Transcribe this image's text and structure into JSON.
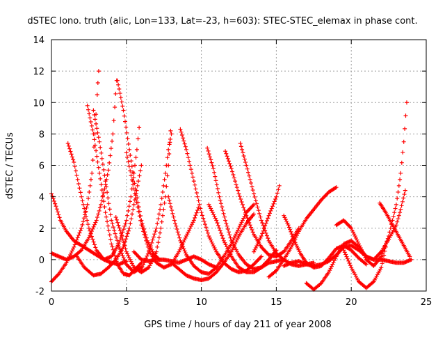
{
  "chart_data": {
    "type": "scatter",
    "title": "dSTEC Iono. truth (alic, Lon=133, Lat=-23, h=603): STEC-STEC_elemax in phase cont.",
    "xlabel": "GPS time / hours of day 211 of year 2008",
    "ylabel": "dSTEC  / TECUs",
    "xlim": [
      0,
      25
    ],
    "ylim": [
      -2,
      14
    ],
    "xticks": [
      "0",
      "5",
      "10",
      "15",
      "20",
      "25"
    ],
    "yticks": [
      "-2",
      "0",
      "2",
      "4",
      "6",
      "8",
      "10",
      "12",
      "14"
    ],
    "grid": true,
    "legend": "none",
    "marker": "plus",
    "series_color": "#ff0000",
    "series": [
      {
        "points": [
          [
            0.0,
            0.4
          ],
          [
            0.5,
            0.2
          ],
          [
            1.0,
            0.0
          ],
          [
            1.5,
            0.2
          ],
          [
            2.0,
            0.6
          ],
          [
            2.5,
            1.4
          ],
          [
            3.0,
            2.5
          ],
          [
            3.3,
            3.5
          ],
          [
            3.55,
            4.5
          ],
          [
            3.8,
            5.7
          ],
          [
            4.1,
            8.0
          ],
          [
            4.35,
            11.4
          ]
        ]
      },
      {
        "points": [
          [
            0.0,
            -1.4
          ],
          [
            0.5,
            -0.9
          ],
          [
            1.0,
            -0.2
          ],
          [
            1.5,
            0.8
          ],
          [
            2.0,
            2.0
          ],
          [
            2.4,
            3.5
          ],
          [
            2.7,
            5.5
          ],
          [
            2.9,
            8.0
          ],
          [
            3.05,
            10.5
          ],
          [
            3.15,
            12.0
          ]
        ]
      },
      {
        "points": [
          [
            0.0,
            4.2
          ],
          [
            0.3,
            3.4
          ],
          [
            0.6,
            2.5
          ],
          [
            1.0,
            1.8
          ],
          [
            1.5,
            1.2
          ],
          [
            2.0,
            0.9
          ],
          [
            2.5,
            0.6
          ],
          [
            3.0,
            0.3
          ],
          [
            3.5,
            0.0
          ],
          [
            4.0,
            -0.2
          ],
          [
            4.5,
            -0.3
          ],
          [
            5.0,
            -0.1
          ]
        ]
      },
      {
        "points": [
          [
            1.1,
            7.4
          ],
          [
            1.5,
            6.2
          ],
          [
            2.0,
            4.0
          ],
          [
            2.5,
            2.0
          ],
          [
            3.0,
            0.6
          ],
          [
            3.5,
            0.0
          ],
          [
            4.0,
            0.2
          ],
          [
            4.5,
            1.0
          ],
          [
            5.0,
            2.5
          ],
          [
            5.3,
            4.0
          ],
          [
            5.5,
            5.5
          ],
          [
            5.7,
            7.0
          ],
          [
            5.85,
            8.4
          ]
        ]
      },
      {
        "points": [
          [
            2.4,
            9.8
          ],
          [
            2.8,
            8.0
          ],
          [
            3.2,
            5.5
          ],
          [
            3.6,
            3.0
          ],
          [
            4.0,
            1.0
          ],
          [
            4.4,
            -0.3
          ],
          [
            4.8,
            -0.9
          ],
          [
            5.2,
            -1.0
          ],
          [
            5.6,
            -0.6
          ],
          [
            6.0,
            -0.2
          ]
        ]
      },
      {
        "points": [
          [
            2.8,
            9.5
          ],
          [
            3.2,
            7.5
          ],
          [
            3.6,
            5.0
          ],
          [
            4.0,
            2.5
          ],
          [
            4.5,
            0.8
          ],
          [
            5.0,
            -0.3
          ],
          [
            5.5,
            -0.8
          ],
          [
            6.0,
            -0.5
          ]
        ]
      },
      {
        "points": [
          [
            1.7,
            0.2
          ],
          [
            2.2,
            -0.5
          ],
          [
            2.8,
            -1.0
          ],
          [
            3.3,
            -0.9
          ],
          [
            3.8,
            -0.5
          ],
          [
            4.3,
            0.0
          ],
          [
            4.8,
            0.8
          ],
          [
            5.2,
            2.0
          ],
          [
            5.5,
            3.5
          ],
          [
            5.8,
            5.0
          ],
          [
            6.0,
            6.0
          ]
        ]
      },
      {
        "points": [
          [
            4.3,
            2.7
          ],
          [
            4.7,
            1.5
          ],
          [
            5.0,
            0.5
          ],
          [
            5.5,
            -0.5
          ],
          [
            6.0,
            -0.8
          ],
          [
            6.5,
            -0.5
          ],
          [
            7.0,
            0.5
          ],
          [
            7.3,
            2.0
          ],
          [
            7.6,
            4.0
          ],
          [
            7.8,
            6.0
          ],
          [
            7.95,
            8.2
          ]
        ]
      },
      {
        "points": [
          [
            4.4,
            11.4
          ],
          [
            4.8,
            9.5
          ],
          [
            5.2,
            7.0
          ],
          [
            5.6,
            4.5
          ],
          [
            6.0,
            2.5
          ],
          [
            6.4,
            1.2
          ],
          [
            6.8,
            0.4
          ],
          [
            7.2,
            0.0
          ]
        ]
      },
      {
        "points": [
          [
            5.0,
            6.8
          ],
          [
            5.5,
            4.5
          ],
          [
            6.0,
            2.2
          ],
          [
            6.5,
            0.6
          ],
          [
            7.0,
            -0.2
          ],
          [
            7.5,
            -0.5
          ],
          [
            8.0,
            -0.3
          ],
          [
            8.5,
            0.5
          ],
          [
            9.0,
            1.5
          ],
          [
            9.5,
            2.5
          ],
          [
            9.8,
            3.3
          ]
        ]
      },
      {
        "points": [
          [
            5.5,
            0.5
          ],
          [
            6.0,
            0.0
          ],
          [
            6.5,
            -0.1
          ],
          [
            7.0,
            0.0
          ],
          [
            7.5,
            0.0
          ],
          [
            8.0,
            -0.1
          ],
          [
            8.5,
            -0.2
          ],
          [
            9.0,
            0.0
          ],
          [
            9.5,
            0.2
          ],
          [
            10.0,
            0.0
          ],
          [
            10.5,
            -0.3
          ],
          [
            11.0,
            -0.5
          ]
        ]
      },
      {
        "points": [
          [
            6.0,
            -0.6
          ],
          [
            6.5,
            0.5
          ],
          [
            7.0,
            2.0
          ],
          [
            7.3,
            3.5
          ],
          [
            7.6,
            5.5
          ],
          [
            7.8,
            7.0
          ],
          [
            8.0,
            8.0
          ]
        ]
      },
      {
        "points": [
          [
            7.8,
            4.0
          ],
          [
            8.2,
            2.5
          ],
          [
            8.6,
            1.2
          ],
          [
            9.0,
            0.3
          ],
          [
            9.5,
            -0.4
          ],
          [
            10.0,
            -0.8
          ],
          [
            10.5,
            -0.9
          ],
          [
            11.0,
            -0.5
          ],
          [
            11.5,
            0.2
          ],
          [
            12.0,
            1.0
          ],
          [
            12.5,
            2.0
          ],
          [
            13.0,
            3.0
          ],
          [
            13.5,
            3.5
          ]
        ]
      },
      {
        "points": [
          [
            8.6,
            8.3
          ],
          [
            9.0,
            7.0
          ],
          [
            9.5,
            5.0
          ],
          [
            10.0,
            3.0
          ],
          [
            10.5,
            1.5
          ],
          [
            11.0,
            0.5
          ],
          [
            11.5,
            -0.2
          ],
          [
            12.0,
            -0.6
          ],
          [
            12.5,
            -0.8
          ],
          [
            13.0,
            -0.7
          ],
          [
            13.5,
            -0.3
          ],
          [
            14.0,
            0.2
          ]
        ]
      },
      {
        "points": [
          [
            8.0,
            -0.2
          ],
          [
            8.5,
            -0.6
          ],
          [
            9.0,
            -1.0
          ],
          [
            9.5,
            -1.2
          ],
          [
            10.0,
            -1.3
          ],
          [
            10.5,
            -1.2
          ],
          [
            11.0,
            -0.8
          ],
          [
            11.5,
            -0.2
          ],
          [
            12.0,
            0.5
          ],
          [
            12.5,
            1.5
          ],
          [
            13.0,
            2.3
          ],
          [
            13.5,
            2.9
          ]
        ]
      },
      {
        "points": [
          [
            10.4,
            7.1
          ],
          [
            10.8,
            5.8
          ],
          [
            11.2,
            4.0
          ],
          [
            11.6,
            2.5
          ],
          [
            12.0,
            1.2
          ],
          [
            12.5,
            0.3
          ],
          [
            13.0,
            -0.3
          ],
          [
            13.5,
            -0.6
          ],
          [
            14.0,
            -0.5
          ],
          [
            14.5,
            0.0
          ],
          [
            15.0,
            0.6
          ]
        ]
      },
      {
        "points": [
          [
            10.5,
            3.5
          ],
          [
            11.0,
            2.5
          ],
          [
            11.5,
            1.2
          ],
          [
            12.0,
            0.2
          ],
          [
            12.5,
            -0.5
          ],
          [
            13.0,
            -0.8
          ],
          [
            13.5,
            -0.8
          ],
          [
            14.0,
            -0.5
          ],
          [
            14.5,
            -0.2
          ],
          [
            15.0,
            -0.1
          ],
          [
            15.5,
            0.0
          ]
        ]
      },
      {
        "points": [
          [
            11.6,
            6.9
          ],
          [
            12.0,
            5.8
          ],
          [
            12.5,
            4.2
          ],
          [
            13.0,
            2.8
          ],
          [
            13.5,
            1.6
          ],
          [
            14.0,
            0.8
          ],
          [
            14.5,
            0.3
          ],
          [
            15.0,
            0.2
          ],
          [
            15.5,
            0.5
          ],
          [
            16.0,
            1.2
          ],
          [
            16.5,
            2.0
          ]
        ]
      },
      {
        "points": [
          [
            12.6,
            7.4
          ],
          [
            13.0,
            6.0
          ],
          [
            13.5,
            4.2
          ],
          [
            14.0,
            2.5
          ],
          [
            14.5,
            1.2
          ],
          [
            15.0,
            0.4
          ],
          [
            15.5,
            0.0
          ],
          [
            16.0,
            -0.3
          ],
          [
            16.5,
            -0.4
          ],
          [
            17.0,
            -0.3
          ],
          [
            17.5,
            -0.2
          ]
        ]
      },
      {
        "points": [
          [
            13.5,
            0.5
          ],
          [
            14.0,
            1.5
          ],
          [
            14.5,
            2.8
          ],
          [
            15.0,
            4.0
          ],
          [
            15.2,
            4.7
          ]
        ]
      },
      {
        "points": [
          [
            14.5,
            -1.1
          ],
          [
            15.0,
            -0.7
          ],
          [
            15.5,
            0.0
          ],
          [
            16.0,
            0.8
          ],
          [
            16.5,
            1.8
          ],
          [
            17.0,
            2.6
          ],
          [
            17.5,
            3.2
          ],
          [
            18.0,
            3.8
          ],
          [
            18.5,
            4.3
          ],
          [
            19.0,
            4.6
          ]
        ]
      },
      {
        "points": [
          [
            15.5,
            2.8
          ],
          [
            15.8,
            2.2
          ],
          [
            16.2,
            1.2
          ],
          [
            16.6,
            0.4
          ],
          [
            17.0,
            -0.2
          ],
          [
            17.5,
            -0.5
          ],
          [
            18.0,
            -0.4
          ],
          [
            18.5,
            0.1
          ],
          [
            19.0,
            0.7
          ],
          [
            19.5,
            0.9
          ],
          [
            20.0,
            0.6
          ],
          [
            20.5,
            0.1
          ],
          [
            21.0,
            -0.3
          ]
        ]
      },
      {
        "points": [
          [
            15.5,
            -0.4
          ],
          [
            16.0,
            -0.2
          ],
          [
            16.5,
            -0.1
          ],
          [
            17.0,
            -0.3
          ],
          [
            17.5,
            -0.4
          ],
          [
            18.0,
            -0.3
          ],
          [
            18.5,
            -0.1
          ],
          [
            19.0,
            0.3
          ],
          [
            19.5,
            0.8
          ],
          [
            20.0,
            0.9
          ],
          [
            20.5,
            0.6
          ],
          [
            21.0,
            0.2
          ],
          [
            21.5,
            0.0
          ],
          [
            22.0,
            0.0
          ],
          [
            22.5,
            -0.1
          ],
          [
            23.0,
            -0.2
          ],
          [
            23.5,
            -0.2
          ],
          [
            24.0,
            0.0
          ]
        ]
      },
      {
        "points": [
          [
            17.0,
            -1.5
          ],
          [
            17.5,
            -1.9
          ],
          [
            18.0,
            -1.5
          ],
          [
            18.5,
            -0.8
          ],
          [
            19.0,
            0.2
          ],
          [
            19.5,
            1.0
          ],
          [
            20.0,
            1.2
          ],
          [
            20.5,
            0.8
          ],
          [
            21.0,
            0.2
          ],
          [
            21.5,
            0.0
          ],
          [
            22.0,
            0.5
          ],
          [
            22.5,
            1.3
          ],
          [
            23.0,
            2.2
          ],
          [
            23.3,
            3.2
          ],
          [
            23.6,
            4.4
          ]
        ]
      },
      {
        "points": [
          [
            19.0,
            2.2
          ],
          [
            19.5,
            2.5
          ],
          [
            20.0,
            2.0
          ],
          [
            20.5,
            1.0
          ],
          [
            21.0,
            0.0
          ],
          [
            21.5,
            -0.4
          ],
          [
            22.0,
            0.2
          ],
          [
            22.5,
            1.5
          ],
          [
            23.0,
            3.5
          ],
          [
            23.3,
            5.5
          ],
          [
            23.5,
            7.5
          ],
          [
            23.7,
            10.0
          ]
        ]
      },
      {
        "points": [
          [
            19.5,
            0.6
          ],
          [
            20.0,
            -0.5
          ],
          [
            20.5,
            -1.4
          ],
          [
            21.0,
            -1.8
          ],
          [
            21.5,
            -1.4
          ],
          [
            22.0,
            -0.5
          ],
          [
            22.3,
            0.8
          ]
        ]
      },
      {
        "points": [
          [
            21.9,
            3.6
          ],
          [
            22.3,
            3.0
          ],
          [
            22.7,
            2.3
          ],
          [
            23.1,
            1.6
          ],
          [
            23.5,
            0.9
          ],
          [
            23.9,
            0.2
          ]
        ]
      }
    ]
  }
}
